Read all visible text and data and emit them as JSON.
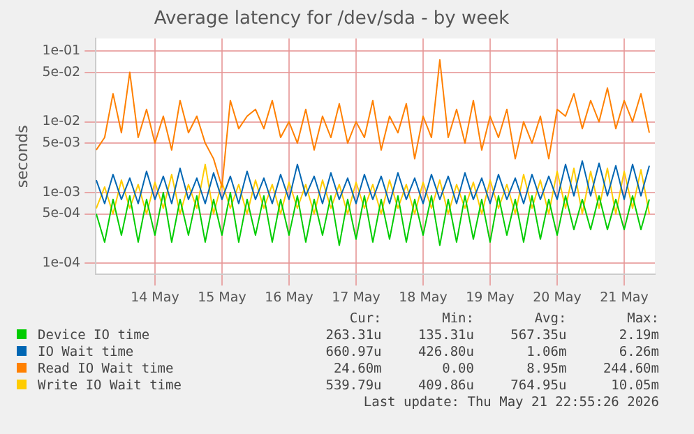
{
  "chart_data": {
    "type": "line",
    "title": "Average latency for /dev/sda - by week",
    "ylabel": "seconds",
    "log": "y",
    "grid": true,
    "legend": "bottom",
    "marker": "none",
    "line_style": "solid",
    "xlim": [
      "2026-05-13T02:50",
      "2026-05-21T11:00"
    ],
    "xticks": [
      {
        "value": "2026-05-14",
        "label": "14 May"
      },
      {
        "value": "2026-05-15",
        "label": "15 May"
      },
      {
        "value": "2026-05-16",
        "label": "16 May"
      },
      {
        "value": "2026-05-17",
        "label": "17 May"
      },
      {
        "value": "2026-05-18",
        "label": "18 May"
      },
      {
        "value": "2026-05-19",
        "label": "19 May"
      },
      {
        "value": "2026-05-20",
        "label": "20 May"
      },
      {
        "value": "2026-05-21",
        "label": "21 May"
      }
    ],
    "ylim": [
      7.5e-05,
      0.15
    ],
    "yticks": [
      {
        "value": 0.0001,
        "label": "1e-04"
      },
      {
        "value": 0.0005,
        "label": "5e-04"
      },
      {
        "value": 0.001,
        "label": "1e-03"
      },
      {
        "value": 0.005,
        "label": "5e-03"
      },
      {
        "value": 0.01,
        "label": "1e-02"
      },
      {
        "value": 0.05,
        "label": "5e-02"
      },
      {
        "value": 0.1,
        "label": "1e-01"
      }
    ],
    "x": [
      "2026-05-13T03:00",
      "2026-05-13T06:00",
      "2026-05-13T09:00",
      "2026-05-13T12:00",
      "2026-05-13T15:00",
      "2026-05-13T18:00",
      "2026-05-13T21:00",
      "2026-05-14T00:00",
      "2026-05-14T03:00",
      "2026-05-14T06:00",
      "2026-05-14T09:00",
      "2026-05-14T12:00",
      "2026-05-14T15:00",
      "2026-05-14T18:00",
      "2026-05-14T21:00",
      "2026-05-15T00:00",
      "2026-05-15T03:00",
      "2026-05-15T06:00",
      "2026-05-15T09:00",
      "2026-05-15T12:00",
      "2026-05-15T15:00",
      "2026-05-15T18:00",
      "2026-05-15T21:00",
      "2026-05-16T00:00",
      "2026-05-16T03:00",
      "2026-05-16T06:00",
      "2026-05-16T09:00",
      "2026-05-16T12:00",
      "2026-05-16T15:00",
      "2026-05-16T18:00",
      "2026-05-16T21:00",
      "2026-05-17T00:00",
      "2026-05-17T03:00",
      "2026-05-17T06:00",
      "2026-05-17T09:00",
      "2026-05-17T12:00",
      "2026-05-17T15:00",
      "2026-05-17T18:00",
      "2026-05-17T21:00",
      "2026-05-18T00:00",
      "2026-05-18T03:00",
      "2026-05-18T06:00",
      "2026-05-18T09:00",
      "2026-05-18T12:00",
      "2026-05-18T15:00",
      "2026-05-18T18:00",
      "2026-05-18T21:00",
      "2026-05-19T00:00",
      "2026-05-19T03:00",
      "2026-05-19T06:00",
      "2026-05-19T09:00",
      "2026-05-19T12:00",
      "2026-05-19T15:00",
      "2026-05-19T18:00",
      "2026-05-19T21:00",
      "2026-05-20T00:00",
      "2026-05-20T03:00",
      "2026-05-20T06:00",
      "2026-05-20T09:00",
      "2026-05-20T12:00",
      "2026-05-20T15:00",
      "2026-05-20T18:00",
      "2026-05-20T21:00",
      "2026-05-21T00:00",
      "2026-05-21T03:00",
      "2026-05-21T06:00",
      "2026-05-21T09:00"
    ],
    "series": [
      {
        "name": "Device IO time",
        "color": "#00cc00",
        "values": [
          0.0005,
          0.0002,
          0.0008,
          0.00025,
          0.0009,
          0.0002,
          0.0008,
          0.00025,
          0.001,
          0.0002,
          0.0008,
          0.00025,
          0.0009,
          0.0002,
          0.0008,
          0.00025,
          0.001,
          0.0002,
          0.0008,
          0.00025,
          0.0009,
          0.0002,
          0.0008,
          0.00025,
          0.0009,
          0.0002,
          0.0008,
          0.00025,
          0.0009,
          0.00018,
          0.0008,
          0.00022,
          0.0009,
          0.0002,
          0.0008,
          0.00022,
          0.0009,
          0.0002,
          0.0008,
          0.00025,
          0.0009,
          0.00018,
          0.0008,
          0.0002,
          0.0009,
          0.00022,
          0.0008,
          0.0002,
          0.0009,
          0.00025,
          0.0008,
          0.0002,
          0.0009,
          0.00022,
          0.0008,
          0.00025,
          0.0009,
          0.0003,
          0.0008,
          0.0003,
          0.0009,
          0.0003,
          0.0008,
          0.0003,
          0.0009,
          0.0003,
          0.0008
        ]
      },
      {
        "name": "IO Wait time",
        "color": "#0066b3",
        "values": [
          0.0015,
          0.0007,
          0.0018,
          0.0008,
          0.0016,
          0.0007,
          0.002,
          0.0008,
          0.0017,
          0.0007,
          0.0022,
          0.0008,
          0.0016,
          0.0007,
          0.0019,
          0.0008,
          0.0017,
          0.0007,
          0.002,
          0.0008,
          0.0016,
          0.0007,
          0.0018,
          0.0008,
          0.0025,
          0.0009,
          0.0017,
          0.0007,
          0.0019,
          0.0008,
          0.0016,
          0.0007,
          0.0018,
          0.0008,
          0.0017,
          0.0007,
          0.0019,
          0.0008,
          0.0016,
          0.0007,
          0.0018,
          0.0008,
          0.0017,
          0.0007,
          0.0019,
          0.0008,
          0.0016,
          0.0007,
          0.0018,
          0.0008,
          0.0016,
          0.0007,
          0.0018,
          0.0008,
          0.0017,
          0.0008,
          0.0025,
          0.0009,
          0.0028,
          0.0009,
          0.0026,
          0.0009,
          0.0024,
          0.0008,
          0.0025,
          0.0009,
          0.0024
        ]
      },
      {
        "name": "Read IO Wait time",
        "color": "#ff8000",
        "values": [
          0.004,
          0.006,
          0.025,
          0.007,
          0.05,
          0.006,
          0.015,
          0.005,
          0.012,
          0.004,
          0.02,
          0.007,
          0.012,
          0.005,
          0.003,
          0.0012,
          0.02,
          0.008,
          0.012,
          0.015,
          0.008,
          0.02,
          0.006,
          0.01,
          0.005,
          0.015,
          0.004,
          0.012,
          0.006,
          0.018,
          0.005,
          0.01,
          0.006,
          0.02,
          0.004,
          0.012,
          0.007,
          0.018,
          0.003,
          0.012,
          0.006,
          0.075,
          0.006,
          0.015,
          0.005,
          0.02,
          0.004,
          0.012,
          0.006,
          0.015,
          0.003,
          0.01,
          0.005,
          0.012,
          0.003,
          0.015,
          0.012,
          0.025,
          0.008,
          0.02,
          0.01,
          0.03,
          0.008,
          0.02,
          0.01,
          0.025,
          0.007
        ]
      },
      {
        "name": "Write IO Wait time",
        "color": "#ffcc00",
        "values": [
          0.0006,
          0.0012,
          0.0005,
          0.0015,
          0.0006,
          0.0013,
          0.0005,
          0.0014,
          0.0006,
          0.0018,
          0.0005,
          0.0013,
          0.0006,
          0.0025,
          0.0005,
          0.0014,
          0.0006,
          0.0013,
          0.0005,
          0.0015,
          0.0006,
          0.0013,
          0.0005,
          0.0014,
          0.0006,
          0.0013,
          0.0005,
          0.0015,
          0.0006,
          0.0013,
          0.0005,
          0.0014,
          0.0006,
          0.0013,
          0.0005,
          0.0015,
          0.0006,
          0.0013,
          0.0005,
          0.0014,
          0.0006,
          0.0015,
          0.0005,
          0.0013,
          0.0006,
          0.0014,
          0.0005,
          0.0015,
          0.0006,
          0.0013,
          0.0005,
          0.0018,
          0.0006,
          0.0015,
          0.0005,
          0.002,
          0.0006,
          0.0022,
          0.0005,
          0.002,
          0.0006,
          0.0022,
          0.0005,
          0.002,
          0.0006,
          0.0021,
          0.0005
        ]
      }
    ],
    "annotations": [
      "Cur:",
      "Min:",
      "Avg:",
      "Max:",
      "263.31u",
      "135.31u",
      "567.35u",
      "2.19m",
      "660.97u",
      "426.80u",
      "1.06m",
      "6.26m",
      "24.60m",
      "0.00",
      "8.95m",
      "244.60m",
      "539.79u",
      "409.86u",
      "764.95u",
      "10.05m",
      "Last update: Thu May 21 22:55:26 2026"
    ]
  }
}
